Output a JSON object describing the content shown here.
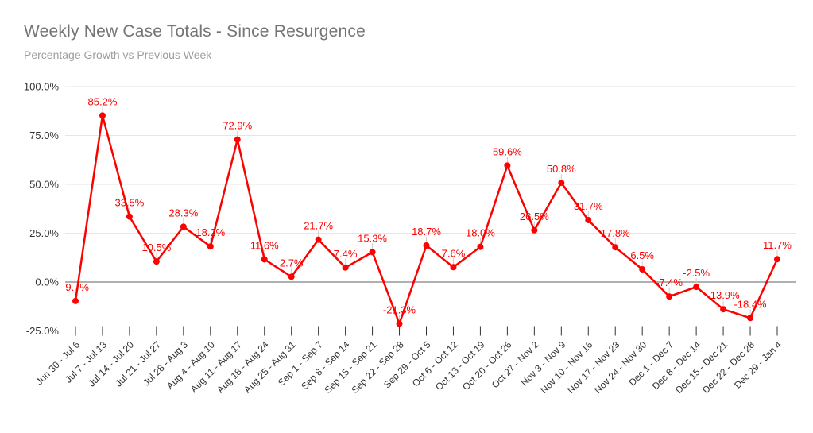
{
  "title": "Weekly New Case Totals - Since Resurgence",
  "subtitle": "Percentage Growth vs Previous Week",
  "colors": {
    "series": "#ff0000",
    "grid": "#e6e6e6",
    "zero_line": "#808080",
    "axis": "#333333",
    "tick_text": "#333333",
    "title": "#757575",
    "subtitle": "#9e9e9e",
    "leader": "#cccccc",
    "background": "#ffffff"
  },
  "chart_data": {
    "type": "line",
    "title": "Weekly New Case Totals - Since Resurgence",
    "subtitle": "Percentage Growth vs Previous Week",
    "xlabel": "",
    "ylabel": "",
    "legend": "none",
    "grid": true,
    "marker": "circle",
    "data_labels_shown": true,
    "ylim": [
      -25,
      100
    ],
    "y_tick_labels": [
      "100.0%",
      "75.0%",
      "50.0%",
      "25.0%",
      "0.0%",
      "-25.0%"
    ],
    "y_tick_values": [
      100,
      75,
      50,
      25,
      0,
      -25
    ],
    "categories": [
      "Jun 30 - Jul 6",
      "Jul 7 - Jul 13",
      "Jul 14 - Jul 20",
      "Jul 21 - Jul 27",
      "Jul 28 - Aug 3",
      "Aug 4 - Aug 10",
      "Aug 11 - Aug 17",
      "Aug 18 - Aug 24",
      "Aug 25 - Aug 31",
      "Sep 1 - Sep 7",
      "Sep 8 - Sep 14",
      "Sep 15 - Sep 21",
      "Sep 22 - Sep 28",
      "Sep 29 - Oct 5",
      "Oct 6 - Oct 12",
      "Oct 13 - Oct 19",
      "Oct 20 - Oct 26",
      "Oct 27 - Nov 2",
      "Nov 3 - Nov 9",
      "Nov 10 - Nov 16",
      "Nov 17 - Nov 23",
      "Nov 24 - Nov 30",
      "Dec 1 - Dec 7",
      "Dec 8 - Dec 14",
      "Dec 15 - Dec 21",
      "Dec 22 - Dec 28",
      "Dec 29 - Jan 4"
    ],
    "values": [
      -9.7,
      85.2,
      33.5,
      10.5,
      28.3,
      18.2,
      72.9,
      11.6,
      2.7,
      21.7,
      7.4,
      15.3,
      -21.3,
      18.7,
      7.6,
      18.0,
      59.6,
      26.5,
      50.8,
      31.7,
      17.8,
      6.5,
      -7.4,
      -2.5,
      -13.9,
      -18.4,
      11.7
    ],
    "point_labels": [
      "-9.7%",
      "85.2%",
      "33.5%",
      "10.5%",
      "28.3%",
      "18.2%",
      "72.9%",
      "11.6%",
      "2.7%",
      "21.7%",
      "7.4%",
      "15.3%",
      "-21.3%",
      "18.7%",
      "7.6%",
      "18.0%",
      "59.6%",
      "26.5%",
      "50.8%",
      "31.7%",
      "17.8%",
      "6.5%",
      "-7.4%",
      "-2.5%",
      "-13.9%",
      "-18.4%",
      "11.7%"
    ]
  }
}
